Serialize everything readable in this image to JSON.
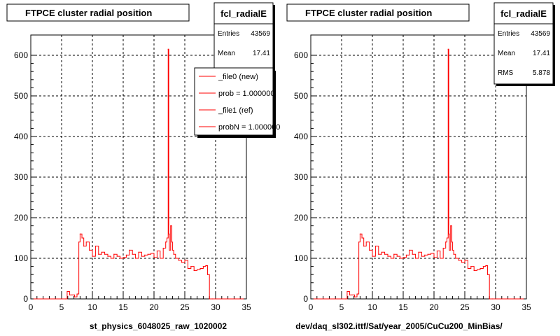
{
  "chart_data": [
    {
      "type": "line",
      "title": "FTPCE cluster radial position",
      "xlabel": "st_physics_6048025_raw_1020002",
      "ylabel": "",
      "xlim": [
        0,
        35
      ],
      "ylim": [
        0,
        650
      ],
      "x_ticks": [
        "0",
        "5",
        "10",
        "15",
        "20",
        "25",
        "30",
        "35"
      ],
      "y_ticks": [
        "0",
        "100",
        "200",
        "300",
        "400",
        "500",
        "600"
      ],
      "grid": true,
      "stats": {
        "name": "fcl_radialE",
        "rows": [
          {
            "label": "Entries",
            "value": "43569"
          },
          {
            "label": "Mean",
            "value": "17.41"
          }
        ]
      },
      "legend": {
        "position": "top-right",
        "entries": [
          "_file0 (new)",
          "prob = 1.000000",
          "_file1 (ref)",
          "probN = 1.000000"
        ]
      },
      "series": [
        {
          "name": "_file0 (new)",
          "color": "#ff0000",
          "x": [
            0.5,
            5.6,
            5.9,
            6.3,
            7.1,
            7.5,
            7.8,
            8.0,
            8.3,
            8.6,
            9.0,
            9.5,
            10.0,
            10.5,
            11.0,
            11.5,
            12.0,
            12.5,
            13.0,
            13.5,
            14.0,
            14.5,
            15.0,
            15.5,
            16.0,
            16.5,
            17.0,
            17.5,
            18.0,
            18.5,
            19.0,
            19.5,
            20.0,
            20.5,
            21.0,
            21.5,
            21.9,
            22.1,
            22.3,
            22.4,
            22.5,
            22.7,
            22.9,
            23.0,
            23.2,
            23.5,
            24.0,
            24.5,
            25.0,
            25.5,
            26.0,
            26.5,
            27.0,
            27.5,
            28.0,
            28.4,
            28.7,
            29.0,
            29.5,
            34.5
          ],
          "values": [
            0,
            0,
            18,
            10,
            5,
            12,
            140,
            160,
            150,
            130,
            140,
            120,
            105,
            130,
            110,
            115,
            110,
            105,
            100,
            110,
            105,
            100,
            102,
            108,
            120,
            110,
            100,
            115,
            105,
            108,
            110,
            112,
            102,
            118,
            100,
            125,
            140,
            150,
            615,
            160,
            120,
            180,
            140,
            120,
            110,
            100,
            95,
            90,
            95,
            75,
            80,
            70,
            72,
            75,
            80,
            82,
            60,
            0,
            0,
            0
          ]
        }
      ]
    },
    {
      "type": "line",
      "title": "FTPCE cluster radial position",
      "xlabel": "dev/daq_sl302.ittf/Sat/year_2005/CuCu200_MinBias/",
      "ylabel": "",
      "xlim": [
        0,
        35
      ],
      "ylim": [
        0,
        650
      ],
      "x_ticks": [
        "0",
        "5",
        "10",
        "15",
        "20",
        "25",
        "30",
        "35"
      ],
      "y_ticks": [
        "0",
        "100",
        "200",
        "300",
        "400",
        "500",
        "600"
      ],
      "grid": true,
      "stats": {
        "name": "fcl_radialE",
        "rows": [
          {
            "label": "Entries",
            "value": "43569"
          },
          {
            "label": "Mean",
            "value": "17.41"
          },
          {
            "label": "RMS",
            "value": "5.878"
          }
        ]
      },
      "series": [
        {
          "color": "#ff0000",
          "x": [
            0.5,
            5.6,
            5.9,
            6.3,
            7.1,
            7.5,
            7.8,
            8.0,
            8.3,
            8.6,
            9.0,
            9.5,
            10.0,
            10.5,
            11.0,
            11.5,
            12.0,
            12.5,
            13.0,
            13.5,
            14.0,
            14.5,
            15.0,
            15.5,
            16.0,
            16.5,
            17.0,
            17.5,
            18.0,
            18.5,
            19.0,
            19.5,
            20.0,
            20.5,
            21.0,
            21.5,
            21.9,
            22.1,
            22.3,
            22.4,
            22.5,
            22.7,
            22.9,
            23.0,
            23.2,
            23.5,
            24.0,
            24.5,
            25.0,
            25.5,
            26.0,
            26.5,
            27.0,
            27.5,
            28.0,
            28.4,
            28.7,
            29.0,
            29.5,
            34.5
          ],
          "values": [
            0,
            0,
            18,
            10,
            5,
            12,
            140,
            160,
            150,
            130,
            140,
            120,
            105,
            130,
            110,
            115,
            110,
            105,
            100,
            110,
            105,
            100,
            102,
            108,
            120,
            110,
            100,
            115,
            105,
            108,
            110,
            112,
            102,
            118,
            100,
            125,
            140,
            150,
            615,
            160,
            120,
            180,
            140,
            120,
            110,
            100,
            95,
            90,
            95,
            75,
            80,
            70,
            72,
            75,
            80,
            82,
            60,
            0,
            0,
            0
          ]
        }
      ]
    }
  ]
}
